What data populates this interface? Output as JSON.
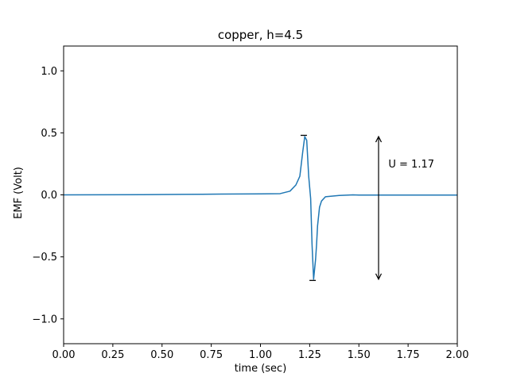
{
  "chart_data": {
    "type": "line",
    "title": "copper, h=4.5",
    "xlabel": "time (sec)",
    "ylabel": "EMF (Volt)",
    "xlim": [
      0,
      2
    ],
    "ylim": [
      -1.2,
      1.2
    ],
    "grid": false,
    "x_ticks": [
      0.0,
      0.25,
      0.5,
      0.75,
      1.0,
      1.25,
      1.5,
      1.75,
      2.0
    ],
    "x_tick_labels": [
      "0.00",
      "0.25",
      "0.50",
      "0.75",
      "1.00",
      "1.25",
      "1.50",
      "1.75",
      "2.00"
    ],
    "y_ticks": [
      -1.0,
      -0.5,
      0.0,
      0.5,
      1.0
    ],
    "y_tick_labels": [
      "−1.0",
      "−0.5",
      "0.0",
      "0.5",
      "1.0"
    ],
    "series": [
      {
        "color": "#1f77b4",
        "x": [
          0.0,
          0.2,
          0.4,
          0.6,
          0.8,
          1.0,
          1.1,
          1.15,
          1.18,
          1.2,
          1.215,
          1.225,
          1.235,
          1.245,
          1.255,
          1.262,
          1.27,
          1.28,
          1.285,
          1.29,
          1.3,
          1.31,
          1.33,
          1.4,
          1.47,
          1.5,
          1.6,
          2.0
        ],
        "y": [
          0.0,
          0.001,
          0.002,
          0.004,
          0.006,
          0.008,
          0.01,
          0.03,
          0.08,
          0.15,
          0.35,
          0.47,
          0.44,
          0.15,
          -0.03,
          -0.4,
          -0.68,
          -0.52,
          -0.4,
          -0.25,
          -0.1,
          -0.05,
          -0.015,
          -0.005,
          0.0,
          -0.002,
          -0.002,
          -0.002
        ]
      }
    ],
    "annotations": {
      "peak_marker": {
        "x": 1.22,
        "y": 0.48
      },
      "trough_marker": {
        "x": 1.265,
        "y": -0.69
      },
      "double_arrow": {
        "x": 1.6,
        "y_top": 0.47,
        "y_bottom": -0.68
      },
      "amplitude_text": "U = 1.17",
      "amplitude_text_pos": {
        "x": 1.65,
        "y": 0.22
      }
    }
  }
}
